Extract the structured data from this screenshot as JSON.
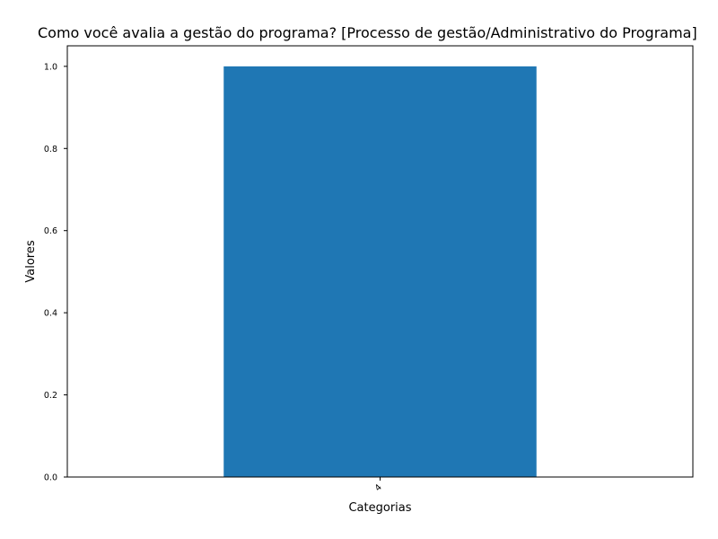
{
  "chart_data": {
    "type": "bar",
    "title": "Como você avalia a gestão do programa? [Processo de gestão/Administrativo do Programa]",
    "xlabel": "Categorias",
    "ylabel": "Valores",
    "categories": [
      "4"
    ],
    "values": [
      1.0
    ],
    "ylim": [
      0,
      1.05
    ],
    "yticks": [
      "0.0",
      "0.2",
      "0.4",
      "0.6",
      "0.8",
      "1.0"
    ],
    "bar_color": "#1f77b4",
    "grid": false,
    "legend": "none"
  }
}
